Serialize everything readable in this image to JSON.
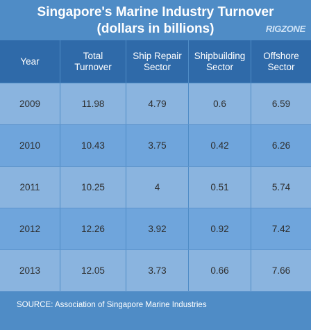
{
  "title_line1": "Singapore's Marine Industry Turnover",
  "title_line2": "(dollars in billions)",
  "logo_text": "RIGZONE",
  "headers": [
    "Year",
    "Total\nTurnover",
    "Ship Repair\nSector",
    "Shipbuilding\nSector",
    "Offshore\nSector"
  ],
  "source": "SOURCE:  Association of Singapore Marine Industries",
  "colors": {
    "background": "#4f8cc6",
    "header": "#2f6aa9",
    "row_light": "#8ab4df",
    "row_dark": "#6fa5dc"
  },
  "chart_data": {
    "type": "table",
    "title": "Singapore's Marine Industry Turnover (dollars in billions)",
    "columns": [
      "Year",
      "Total Turnover",
      "Ship Repair Sector",
      "Shipbuilding Sector",
      "Offshore Sector"
    ],
    "rows": [
      [
        "2009",
        "11.98",
        "4.79",
        "0.6",
        "6.59"
      ],
      [
        "2010",
        "10.43",
        "3.75",
        "0.42",
        "6.26"
      ],
      [
        "2011",
        "10.25",
        "4",
        "0.51",
        "5.74"
      ],
      [
        "2012",
        "12.26",
        "3.92",
        "0.92",
        "7.42"
      ],
      [
        "2013",
        "12.05",
        "3.73",
        "0.66",
        "7.66"
      ]
    ]
  }
}
